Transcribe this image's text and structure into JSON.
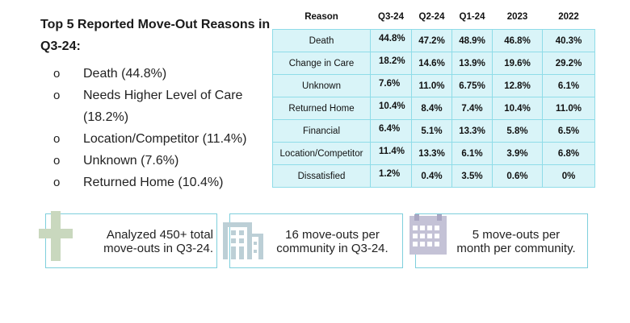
{
  "summary": {
    "title": "Top 5 Reported Move-Out Reasons in Q3-24:",
    "bullet_glyph": "o",
    "items": [
      "Death (44.8%)",
      "Needs Higher Level of Care (18.2%)",
      "Location/Competitor (11.4%)",
      "Unknown (7.6%)",
      "Returned Home (10.4%)"
    ]
  },
  "table": {
    "headers": [
      "Reason",
      "Q3-24",
      "Q2-24",
      "Q1-24",
      "2023",
      "2022"
    ],
    "rows": [
      [
        "Death",
        "44.8%",
        "47.2%",
        "48.9%",
        "46.8%",
        "40.3%"
      ],
      [
        "Change in Care",
        "18.2%",
        "14.6%",
        "13.9%",
        "19.6%",
        "29.2%"
      ],
      [
        "Unknown",
        "7.6%",
        "11.0%",
        "6.75%",
        "12.8%",
        "6.1%"
      ],
      [
        "Returned Home",
        "10.4%",
        "8.4%",
        "7.4%",
        "10.4%",
        "11.0%"
      ],
      [
        "Financial",
        "6.4%",
        "5.1%",
        "13.3%",
        "5.8%",
        "6.5%"
      ],
      [
        "Location/Competitor",
        "11.4%",
        "13.3%",
        "6.1%",
        "3.9%",
        "6.8%"
      ],
      [
        "Dissatisfied",
        "1.2%",
        "0.4%",
        "3.5%",
        "0.6%",
        "0%"
      ]
    ]
  },
  "stats": [
    {
      "line1": "Analyzed 450+ total",
      "line2": "move-outs in Q3-24.",
      "icon": "medical-cross-icon"
    },
    {
      "line1": "16 move-outs per",
      "line2": "community in Q3-24.",
      "icon": "building-icon"
    },
    {
      "line1": "5 move-outs per",
      "line2": "month per community.",
      "icon": "calendar-icon"
    }
  ],
  "colors": {
    "cell_bg": "#d9f4f8",
    "cell_border": "#8fdce8",
    "cross": "#c9d8be",
    "building": "#bccfd6",
    "calendar": "#c4c2d6"
  }
}
